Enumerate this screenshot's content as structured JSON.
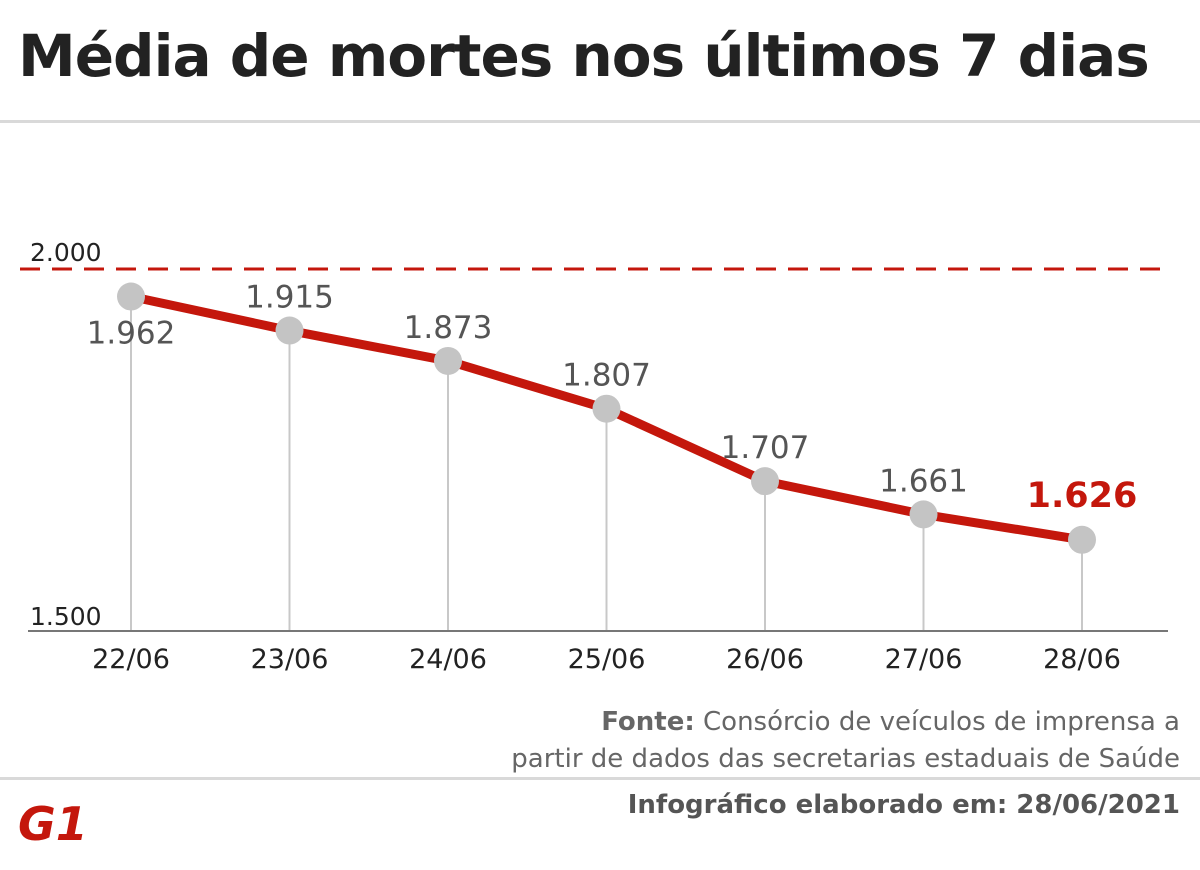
{
  "chart_data": {
    "type": "line",
    "title": "Média de mortes nos últimos 7 dias",
    "categories": [
      "22/06",
      "23/06",
      "24/06",
      "25/06",
      "26/06",
      "27/06",
      "28/06"
    ],
    "values": [
      1962,
      1915,
      1873,
      1807,
      1707,
      1661,
      1626
    ],
    "value_labels": [
      "1.962",
      "1.915",
      "1.873",
      "1.807",
      "1.707",
      "1.661",
      "1.626"
    ],
    "ylim": [
      1500,
      2000
    ],
    "y_tick_labels": [
      "2.000",
      "1.500"
    ],
    "reference_line": {
      "value": 2000,
      "style": "dashed"
    },
    "highlight_last": true,
    "colors": {
      "line": "#c4170c",
      "marker": "#c4c4c4",
      "highlight": "#c4170c",
      "guide": "#c8c8c8",
      "axis": "#777777"
    }
  },
  "footer": {
    "source_label": "Fonte:",
    "source_text_line1": "Consórcio de veículos de imprensa a",
    "source_text_line2": "partir de dados das secretarias estaduais de Saúde",
    "credit": "Infográfico elaborado em: 28/06/2021",
    "logo_text": "G1",
    "logo_color": "#c4170c"
  }
}
